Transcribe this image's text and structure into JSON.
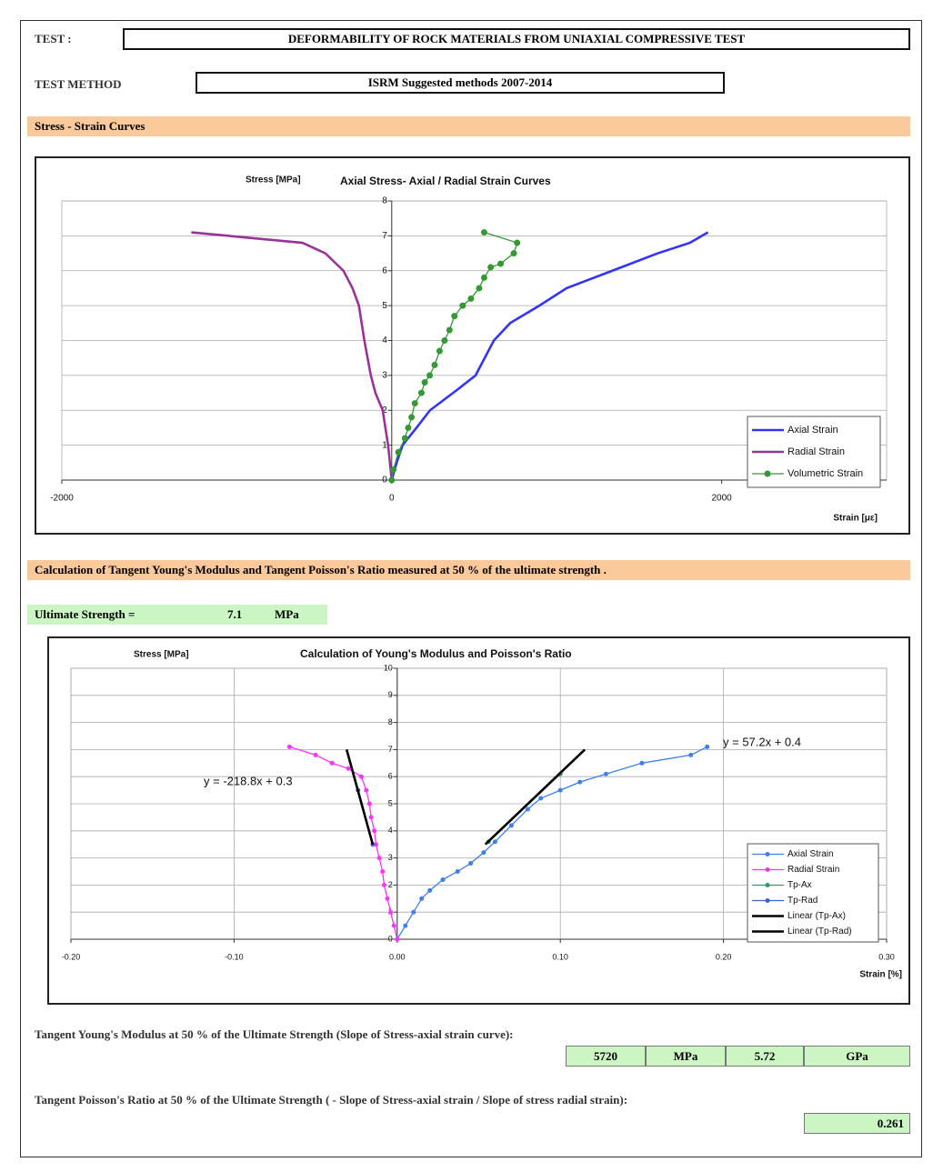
{
  "header": {
    "test_label": "TEST :",
    "test_value": "DEFORMABILITY OF ROCK MATERIALS FROM UNIAXIAL COMPRESSIVE TEST",
    "method_label": "TEST METHOD",
    "method_value": "ISRM Suggested methods 2007-2014"
  },
  "sections": [
    "Stress - Strain Curves",
    "Calculation of Tangent Young's Modulus and Tangent Poisson's Ratio measured at 50 % of the ultimate strength ."
  ],
  "ultimate": {
    "label": "Ultimate Strength =",
    "value": 7.1,
    "unit": "MPa"
  },
  "young": {
    "text": "Tangent Young's Modulus at 50 % of the Ultimate Strength (Slope of Stress-axial strain curve):",
    "value_mpa": 5720,
    "unit_mpa": "MPa",
    "value_gpa": 5.72,
    "unit_gpa": "GPa"
  },
  "poisson": {
    "text": "Tangent Poisson's Ratio at 50 % of the Ultimate Strength ( - Slope of Stress-axial strain / Slope of stress radial strain):",
    "value": 0.261
  },
  "chart_data": [
    {
      "type": "line",
      "title": "Axial Stress- Axial / Radial Strain Curves",
      "y_label": "Stress [MPa]",
      "x_label": "Strain [με]",
      "xlim": [
        -2000,
        3000
      ],
      "xticks": [
        -2000,
        0,
        2000
      ],
      "ylim": [
        0,
        8
      ],
      "yticks": [
        0,
        1,
        2,
        3,
        4,
        5,
        6,
        7,
        8
      ],
      "grid": "y",
      "legend": "lower right",
      "series": [
        {
          "name": "Axial Strain",
          "color": "#3333ff",
          "marker": false,
          "x": [
            0,
            30,
            66,
            150,
            232,
            400,
            508,
            619,
            718,
            895,
            1060,
            1337,
            1613,
            1807,
            1917
          ],
          "values": [
            0,
            0.5,
            1,
            1.5,
            2,
            2.6,
            3,
            4,
            4.5,
            5,
            5.5,
            6,
            6.5,
            6.8,
            7.1
          ]
        },
        {
          "name": "Radial Strain",
          "color": "#993399",
          "marker": false,
          "x": [
            0,
            -22,
            -55,
            -99,
            -127,
            -166,
            -199,
            -238,
            -293,
            -403,
            -541,
            -1215
          ],
          "values": [
            0,
            1,
            2,
            2.5,
            3,
            4,
            5,
            5.5,
            6,
            6.5,
            6.8,
            7.1
          ]
        },
        {
          "name": "Volumetric Strain",
          "color": "#339933",
          "marker": true,
          "x": [
            0,
            10,
            40,
            80,
            100,
            120,
            140,
            180,
            200,
            230,
            260,
            290,
            320,
            350,
            380,
            430,
            480,
            530,
            560,
            600,
            660,
            740,
            760,
            560
          ],
          "values": [
            0,
            0.3,
            0.8,
            1.2,
            1.5,
            1.8,
            2.2,
            2.5,
            2.8,
            3.0,
            3.3,
            3.7,
            4.0,
            4.3,
            4.7,
            5.0,
            5.2,
            5.5,
            5.8,
            6.1,
            6.2,
            6.5,
            6.8,
            7.1
          ]
        }
      ]
    },
    {
      "type": "line",
      "title": "Calculation of Young's Modulus and Poisson's Ratio",
      "y_label": "Stress [MPa]",
      "x_label": "Strain [%]",
      "xlim": [
        -0.2,
        0.3
      ],
      "xticks": [
        {
          "value": -0.2,
          "label": "-0.20"
        },
        {
          "value": -0.1,
          "label": "-0.10"
        },
        {
          "value": 0,
          "label": "0.00"
        },
        {
          "value": 0.1,
          "label": "0.10"
        },
        {
          "value": 0.2,
          "label": "0.20"
        },
        {
          "value": 0.3,
          "label": "0.30"
        }
      ],
      "ylim": [
        0,
        10
      ],
      "yticks": [
        0,
        1,
        2,
        3,
        4,
        5,
        6,
        7,
        8,
        9,
        10
      ],
      "grid": "both",
      "legend": "lower right",
      "annotations": [
        "y = 57.2x + 0.4",
        "y = -218.8x + 0.3"
      ],
      "series": [
        {
          "name": "Axial Strain",
          "color": "#3f7fe8",
          "marker": true,
          "x": [
            0,
            0.005,
            0.01,
            0.015,
            0.02,
            0.028,
            0.037,
            0.045,
            0.053,
            0.06,
            0.07,
            0.08,
            0.088,
            0.1,
            0.112,
            0.128,
            0.15,
            0.18,
            0.19
          ],
          "values": [
            0,
            0.5,
            1,
            1.5,
            1.8,
            2.2,
            2.5,
            2.8,
            3.2,
            3.6,
            4.2,
            4.8,
            5.2,
            5.5,
            5.8,
            6.1,
            6.5,
            6.8,
            7.1
          ]
        },
        {
          "name": "Radial Strain",
          "color": "#ff33ff",
          "marker": true,
          "x": [
            0,
            -0.002,
            -0.004,
            -0.006,
            -0.008,
            -0.009,
            -0.011,
            -0.013,
            -0.014,
            -0.016,
            -0.017,
            -0.019,
            -0.022,
            -0.03,
            -0.04,
            -0.05,
            -0.066
          ],
          "values": [
            0,
            0.5,
            1,
            1.5,
            2,
            2.5,
            3,
            3.5,
            4,
            4.5,
            5,
            5.5,
            6,
            6.3,
            6.5,
            6.8,
            7.1
          ]
        },
        {
          "name": "Tp-Ax",
          "color": "#339966",
          "marker": true,
          "x": [
            0.056,
            0.1
          ],
          "values": [
            3.6,
            6.1
          ]
        },
        {
          "name": "Tp-Rad",
          "color": "#3366cc",
          "marker": true,
          "x": [
            -0.015,
            -0.024
          ],
          "values": [
            3.5,
            5.5
          ]
        },
        {
          "name": "Linear (Tp-Ax)",
          "color": "#000000",
          "marker": false,
          "x": [
            0.054,
            0.115
          ],
          "values": [
            3.5,
            7
          ]
        },
        {
          "name": "Linear (Tp-Rad)",
          "color": "#000000",
          "marker": false,
          "x": [
            -0.015,
            -0.031
          ],
          "values": [
            3.5,
            7
          ]
        }
      ]
    }
  ]
}
